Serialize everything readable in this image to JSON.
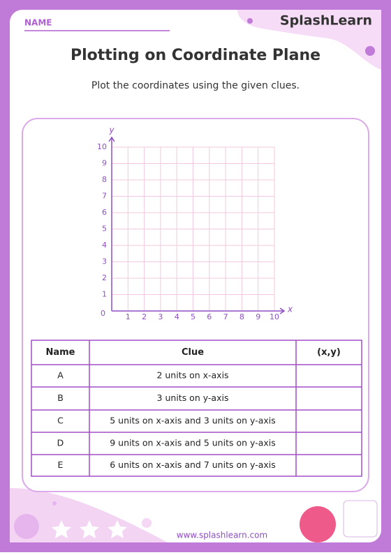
{
  "header": {
    "name_label": "NAME",
    "brand": "SplashLearn",
    "title": "Plotting on Coordinate Plane",
    "subtitle": "Plot the coordinates using the given clues."
  },
  "graph": {
    "x_label": "x",
    "y_label": "y",
    "lim": [
      0,
      10
    ],
    "xticks": [
      1,
      2,
      3,
      4,
      5,
      6,
      7,
      8,
      9,
      10
    ],
    "yticks": [
      1,
      2,
      3,
      4,
      5,
      6,
      7,
      8,
      9,
      10
    ]
  },
  "table": {
    "columns": [
      "Name",
      "Clue",
      "(x,y)"
    ],
    "rows": [
      [
        "A",
        "2 units on x-axis"
      ],
      [
        "B",
        "3 units on y-axis"
      ],
      [
        "C",
        "5 units on x-axis and 3 units on y-axis"
      ],
      [
        "D",
        "9 units on x-axis and 5 units on y-axis"
      ],
      [
        "E",
        "6 units on x-axis and 7 units on y-axis"
      ]
    ]
  },
  "footer": {
    "url": "www.splashlearn.com"
  }
}
